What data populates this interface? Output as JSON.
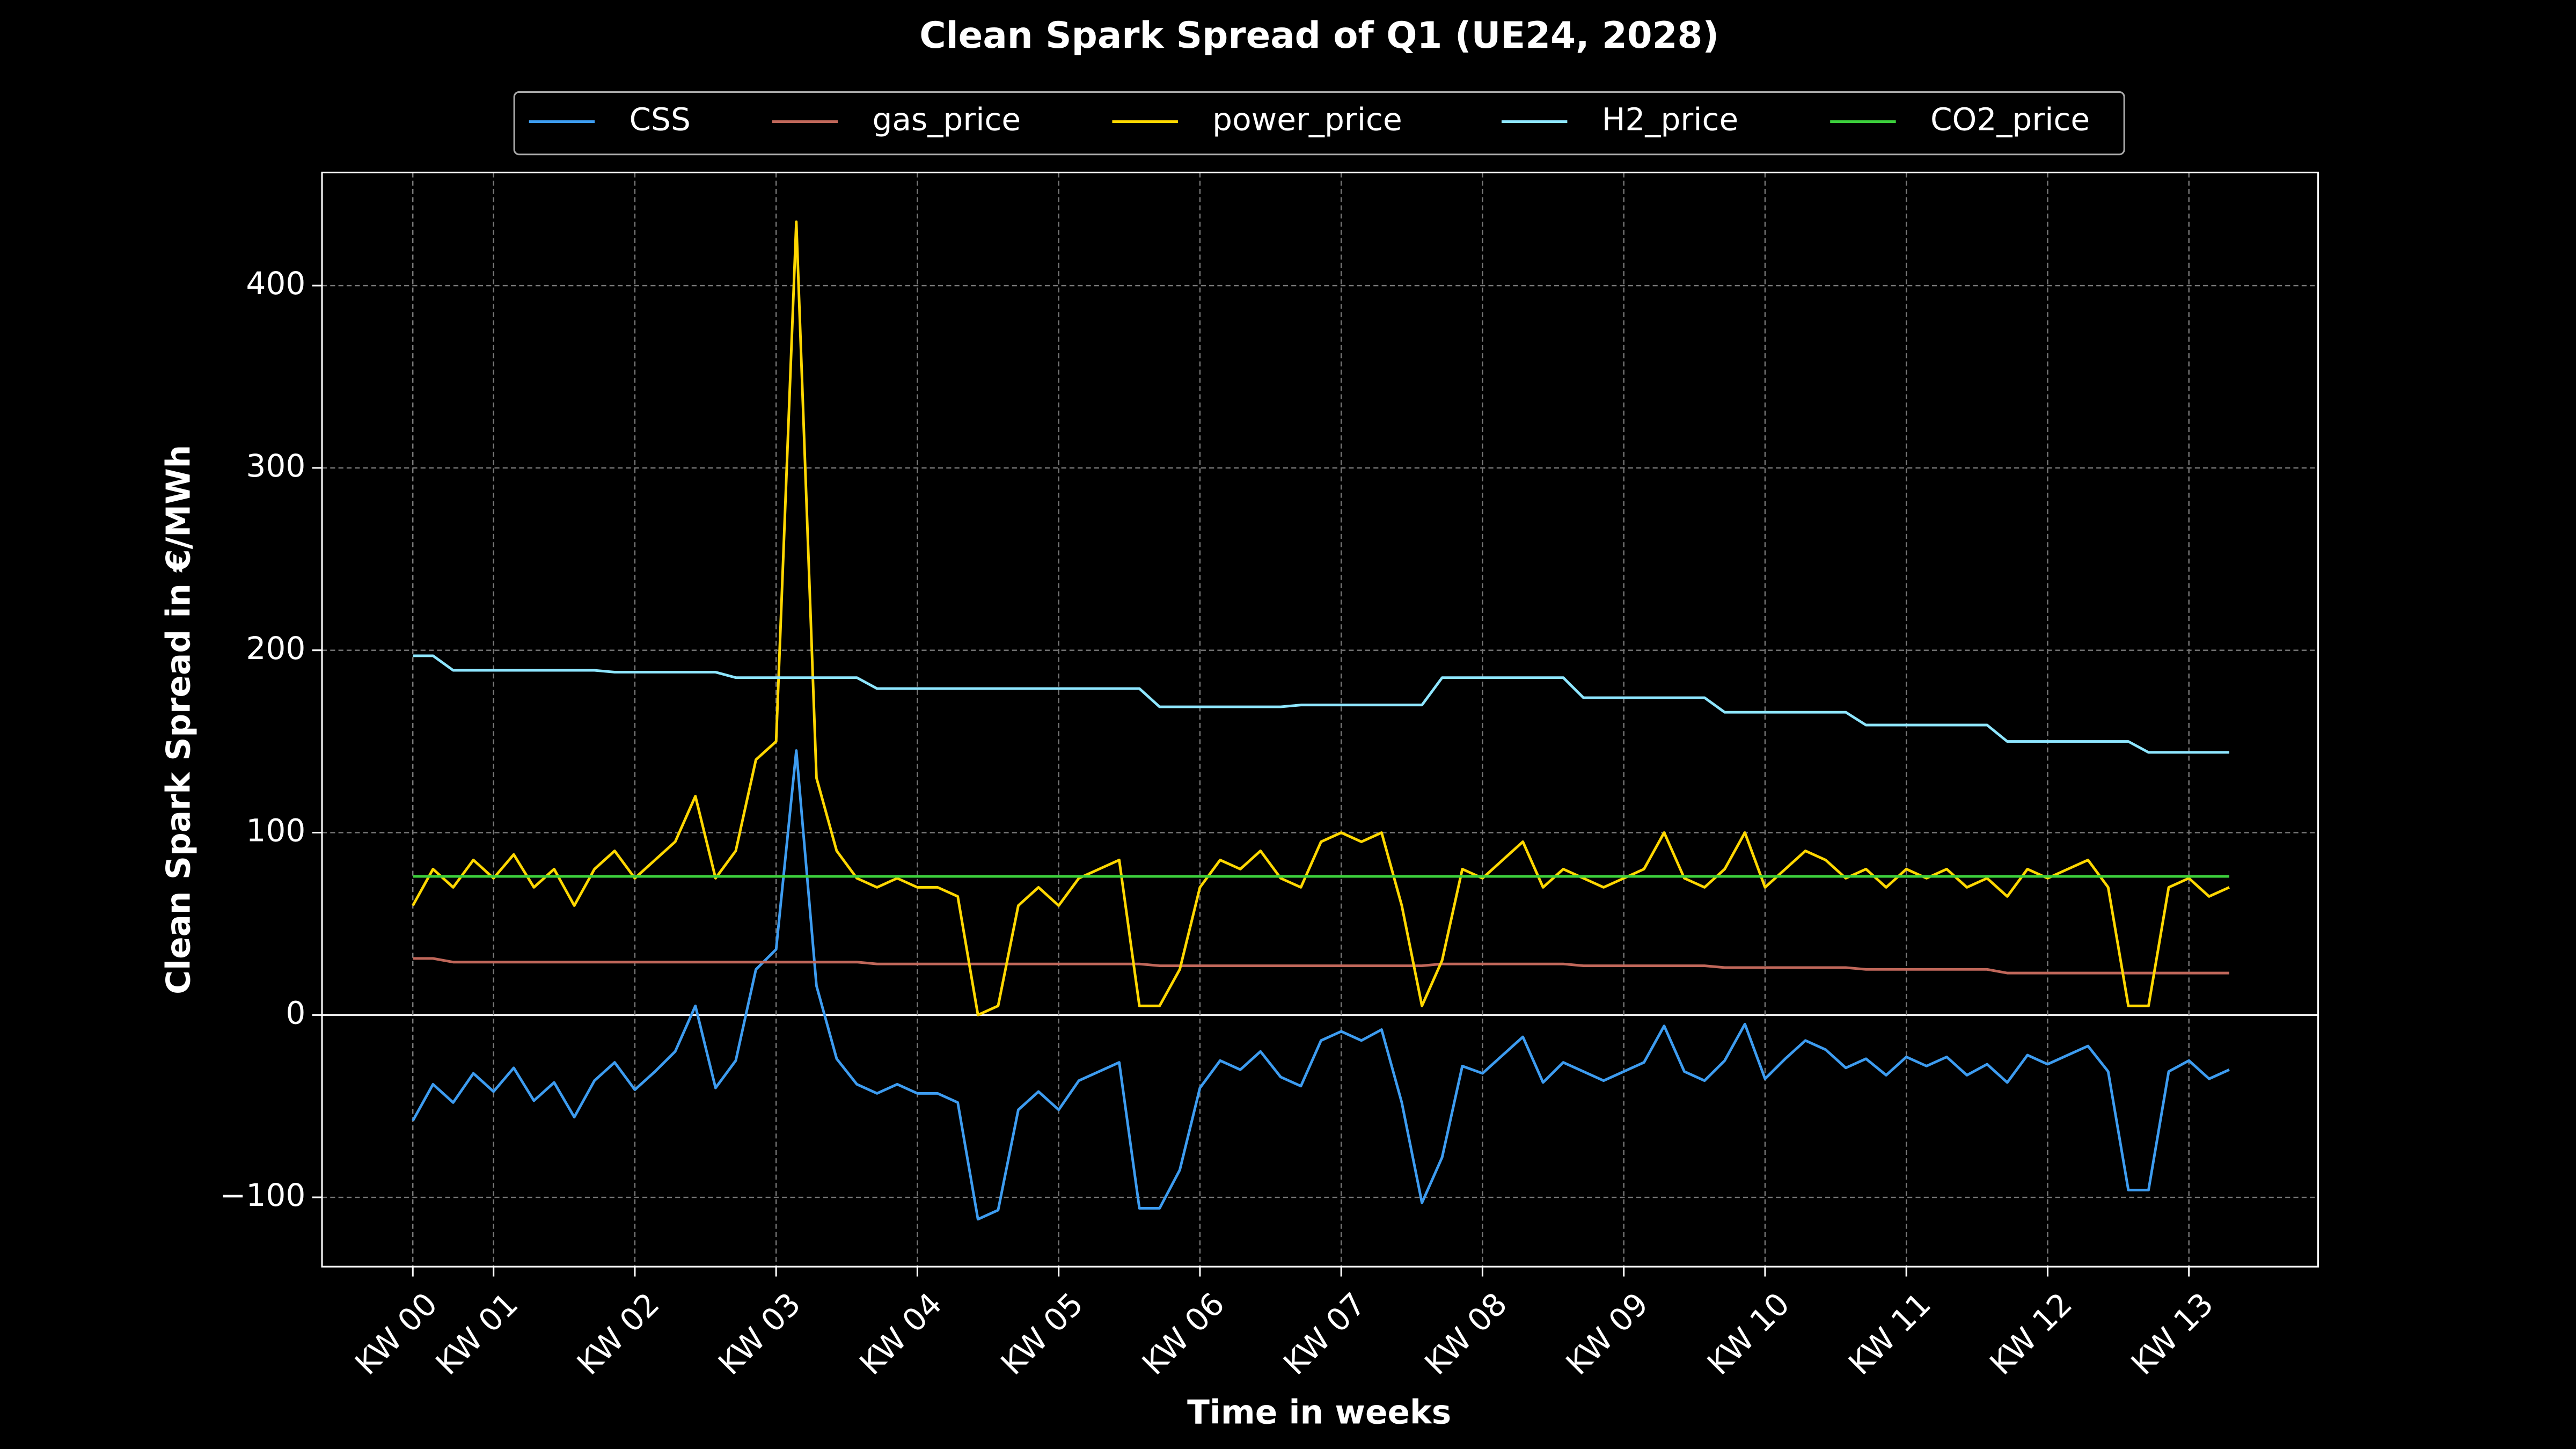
{
  "chart_data": {
    "type": "line",
    "title": "Clean Spark Spread of Q1 (UE24, 2028)",
    "x_label": "Time in weeks",
    "y_label": "Clean Spark Spread in €/MWh",
    "x": [
      0,
      1,
      2,
      3,
      4,
      5,
      6,
      7,
      8,
      9,
      10,
      11,
      12,
      13,
      14,
      15,
      16,
      17,
      18,
      19,
      20,
      21,
      22,
      23,
      24,
      25,
      26,
      27,
      28,
      29,
      30,
      31,
      32,
      33,
      34,
      35,
      36,
      37,
      38,
      39,
      40,
      41,
      42,
      43,
      44,
      45,
      46,
      47,
      48,
      49,
      50,
      51,
      52,
      53,
      54,
      55,
      56,
      57,
      58,
      59,
      60,
      61,
      62,
      63,
      64,
      65,
      66,
      67,
      68,
      69,
      70,
      71,
      72,
      73,
      74,
      75,
      76,
      77,
      78,
      79,
      80,
      81,
      82,
      83,
      84,
      85,
      86,
      87,
      88,
      89,
      90
    ],
    "xlim": [
      -4.5,
      94.4
    ],
    "xticks": [
      {
        "value": 0,
        "label": "KW 00"
      },
      {
        "value": 4,
        "label": "KW 01"
      },
      {
        "value": 11,
        "label": "KW 02"
      },
      {
        "value": 18,
        "label": "KW 03"
      },
      {
        "value": 25,
        "label": "KW 04"
      },
      {
        "value": 32,
        "label": "KW 05"
      },
      {
        "value": 39,
        "label": "KW 06"
      },
      {
        "value": 46,
        "label": "KW 07"
      },
      {
        "value": 53,
        "label": "KW 08"
      },
      {
        "value": 60,
        "label": "KW 09"
      },
      {
        "value": 67,
        "label": "KW 10"
      },
      {
        "value": 74,
        "label": "KW 11"
      },
      {
        "value": 81,
        "label": "KW 12"
      },
      {
        "value": 88,
        "label": "KW 13"
      }
    ],
    "ylim": [
      -138,
      462
    ],
    "yticks": [
      {
        "value": -100,
        "label": "−100"
      },
      0,
      100,
      200,
      300,
      400
    ],
    "grid": true,
    "zero_line": true,
    "legend": "top",
    "series": [
      {
        "name": "CSS",
        "color": "#3d9cf0",
        "values": [
          -58,
          -38,
          -48,
          -32,
          -42,
          -29,
          -47,
          -37,
          -56,
          -36,
          -26,
          -41,
          -31,
          -20,
          5,
          -40,
          -25,
          25,
          36,
          145,
          16,
          -24,
          -38,
          -43,
          -38,
          -43,
          -43,
          -48,
          -112,
          -107,
          -52,
          -42,
          -52,
          -36,
          -31,
          -26,
          -106,
          -106,
          -85,
          -40,
          -25,
          -30,
          -20,
          -34,
          -39,
          -14,
          -9,
          -14,
          -8,
          -48,
          -103,
          -78,
          -28,
          -32,
          -22,
          -12,
          -37,
          -26,
          -31,
          -36,
          -31,
          -26,
          -6,
          -31,
          -36,
          -25,
          -5,
          -35,
          -24,
          -14,
          -19,
          -29,
          -24,
          -33,
          -23,
          -28,
          -23,
          -33,
          -27,
          -37,
          -22,
          -27,
          -22,
          -17,
          -31,
          -96,
          -96,
          -31,
          -25,
          -35,
          -30
        ]
      },
      {
        "name": "gas_price",
        "color": "#c0675a",
        "values": [
          31,
          31,
          29,
          29,
          29,
          29,
          29,
          29,
          29,
          29,
          29,
          29,
          29,
          29,
          29,
          29,
          29,
          29,
          29,
          29,
          29,
          29,
          29,
          28,
          28,
          28,
          28,
          28,
          28,
          28,
          28,
          28,
          28,
          28,
          28,
          28,
          28,
          27,
          27,
          27,
          27,
          27,
          27,
          27,
          27,
          27,
          27,
          27,
          27,
          27,
          27,
          28,
          28,
          28,
          28,
          28,
          28,
          28,
          27,
          27,
          27,
          27,
          27,
          27,
          27,
          26,
          26,
          26,
          26,
          26,
          26,
          26,
          25,
          25,
          25,
          25,
          25,
          25,
          25,
          23,
          23,
          23,
          23,
          23,
          23,
          23,
          23,
          23,
          23,
          23,
          23
        ]
      },
      {
        "name": "power_price",
        "color": "#ffd700",
        "values": [
          60,
          80,
          70,
          85,
          75,
          88,
          70,
          80,
          60,
          80,
          90,
          75,
          85,
          95,
          120,
          75,
          90,
          140,
          150,
          435,
          130,
          90,
          75,
          70,
          75,
          70,
          70,
          65,
          0,
          5,
          60,
          70,
          60,
          75,
          80,
          85,
          5,
          5,
          25,
          70,
          85,
          80,
          90,
          75,
          70,
          95,
          100,
          95,
          100,
          60,
          5,
          30,
          80,
          75,
          85,
          95,
          70,
          80,
          75,
          70,
          75,
          80,
          100,
          75,
          70,
          80,
          100,
          70,
          80,
          90,
          85,
          75,
          80,
          70,
          80,
          75,
          80,
          70,
          75,
          65,
          80,
          75,
          80,
          85,
          70,
          5,
          5,
          70,
          75,
          65,
          70
        ]
      },
      {
        "name": "H2_price",
        "color": "#8ee6ff",
        "values": [
          197,
          197,
          189,
          189,
          189,
          189,
          189,
          189,
          189,
          189,
          188,
          188,
          188,
          188,
          188,
          188,
          185,
          185,
          185,
          185,
          185,
          185,
          185,
          179,
          179,
          179,
          179,
          179,
          179,
          179,
          179,
          179,
          179,
          179,
          179,
          179,
          179,
          169,
          169,
          169,
          169,
          169,
          169,
          169,
          170,
          170,
          170,
          170,
          170,
          170,
          170,
          185,
          185,
          185,
          185,
          185,
          185,
          185,
          174,
          174,
          174,
          174,
          174,
          174,
          174,
          166,
          166,
          166,
          166,
          166,
          166,
          166,
          159,
          159,
          159,
          159,
          159,
          159,
          159,
          150,
          150,
          150,
          150,
          150,
          150,
          150,
          144,
          144,
          144,
          144,
          144
        ]
      },
      {
        "name": "CO2_price",
        "color": "#3ccf3c",
        "values": [
          76,
          76,
          76,
          76,
          76,
          76,
          76,
          76,
          76,
          76,
          76,
          76,
          76,
          76,
          76,
          76,
          76,
          76,
          76,
          76,
          76,
          76,
          76,
          76,
          76,
          76,
          76,
          76,
          76,
          76,
          76,
          76,
          76,
          76,
          76,
          76,
          76,
          76,
          76,
          76,
          76,
          76,
          76,
          76,
          76,
          76,
          76,
          76,
          76,
          76,
          76,
          76,
          76,
          76,
          76,
          76,
          76,
          76,
          76,
          76,
          76,
          76,
          76,
          76,
          76,
          76,
          76,
          76,
          76,
          76,
          76,
          76,
          76,
          76,
          76,
          76,
          76,
          76,
          76,
          76,
          76,
          76,
          76,
          76,
          76,
          76,
          76,
          76,
          76,
          76,
          76
        ]
      }
    ]
  }
}
